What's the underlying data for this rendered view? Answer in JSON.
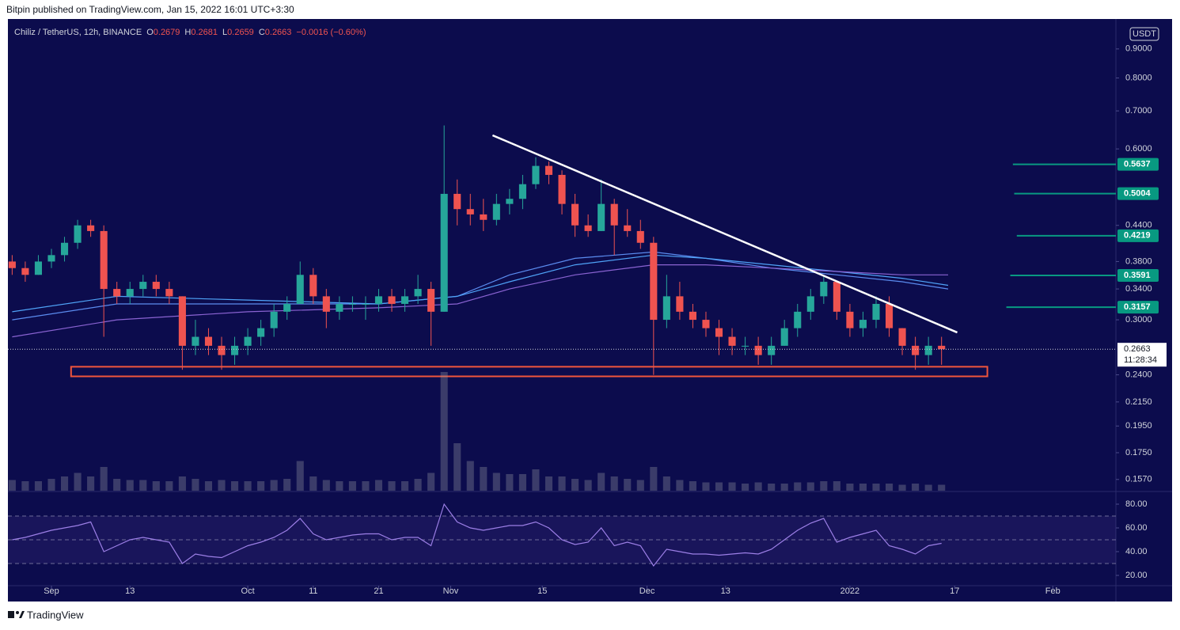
{
  "header": {
    "published": "Bitpin published on TradingView.com, Jan 15, 2022 16:01 UTC+3:30"
  },
  "footer": {
    "brand": "TradingView"
  },
  "chart_data": {
    "type": "candlestick",
    "symbol": "Chiliz / TetherUS, 12h, BINANCE",
    "ohlc": [
      {
        "label": "O",
        "value": 0.2679
      },
      {
        "label": "H",
        "value": 0.2681
      },
      {
        "label": "L",
        "value": 0.2659
      },
      {
        "label": "C",
        "value": 0.2663
      }
    ],
    "change": "−0.0016 (−0.60%)",
    "currency": "USDT",
    "log_scale": true,
    "up_color": "#26a69a",
    "down_color": "#ef5350",
    "x": [
      -6,
      -4,
      -2,
      0,
      2,
      4,
      6,
      8,
      10,
      12,
      14,
      16,
      18,
      20,
      22,
      24,
      26,
      28,
      30,
      32,
      34,
      36,
      38,
      40,
      42,
      44,
      46,
      48,
      50,
      52,
      54,
      56,
      58,
      60,
      62,
      64,
      66,
      68,
      70,
      72,
      74,
      76,
      78,
      80,
      82,
      84,
      86,
      88,
      90,
      92,
      94,
      96,
      98,
      100,
      102,
      104,
      106,
      108,
      110,
      112,
      114,
      116,
      118,
      120,
      122,
      124,
      126,
      128,
      130,
      132,
      134,
      136
    ],
    "open": [
      0.38,
      0.37,
      0.36,
      0.38,
      0.39,
      0.41,
      0.44,
      0.43,
      0.34,
      0.33,
      0.34,
      0.35,
      0.34,
      0.33,
      0.27,
      0.28,
      0.27,
      0.26,
      0.27,
      0.28,
      0.29,
      0.31,
      0.32,
      0.36,
      0.33,
      0.31,
      0.32,
      0.32,
      0.32,
      0.33,
      0.32,
      0.33,
      0.34,
      0.31,
      0.5,
      0.47,
      0.46,
      0.45,
      0.48,
      0.49,
      0.52,
      0.56,
      0.54,
      0.48,
      0.44,
      0.43,
      0.48,
      0.44,
      0.43,
      0.41,
      0.3,
      0.33,
      0.31,
      0.3,
      0.29,
      0.28,
      0.27,
      0.27,
      0.26,
      0.27,
      0.29,
      0.31,
      0.33,
      0.35,
      0.31,
      0.29,
      0.3,
      0.32,
      0.29,
      0.27,
      0.26,
      0.27
    ],
    "high": [
      0.39,
      0.38,
      0.39,
      0.4,
      0.42,
      0.45,
      0.45,
      0.44,
      0.35,
      0.35,
      0.36,
      0.36,
      0.35,
      0.33,
      0.3,
      0.29,
      0.28,
      0.28,
      0.29,
      0.3,
      0.32,
      0.33,
      0.38,
      0.37,
      0.34,
      0.33,
      0.33,
      0.33,
      0.34,
      0.34,
      0.34,
      0.36,
      0.35,
      0.66,
      0.53,
      0.5,
      0.49,
      0.5,
      0.51,
      0.54,
      0.58,
      0.57,
      0.55,
      0.5,
      0.46,
      0.53,
      0.49,
      0.47,
      0.45,
      0.42,
      0.36,
      0.35,
      0.32,
      0.31,
      0.3,
      0.29,
      0.28,
      0.28,
      0.28,
      0.3,
      0.32,
      0.34,
      0.36,
      0.35,
      0.32,
      0.31,
      0.33,
      0.33,
      0.29,
      0.28,
      0.28,
      0.28
    ],
    "low": [
      0.36,
      0.35,
      0.36,
      0.37,
      0.38,
      0.4,
      0.42,
      0.28,
      0.32,
      0.32,
      0.33,
      0.33,
      0.32,
      0.245,
      0.26,
      0.26,
      0.245,
      0.25,
      0.26,
      0.27,
      0.28,
      0.3,
      0.32,
      0.32,
      0.29,
      0.3,
      0.31,
      0.3,
      0.31,
      0.31,
      0.31,
      0.32,
      0.27,
      0.31,
      0.44,
      0.44,
      0.43,
      0.44,
      0.46,
      0.47,
      0.51,
      0.52,
      0.46,
      0.42,
      0.42,
      0.43,
      0.39,
      0.42,
      0.4,
      0.24,
      0.29,
      0.3,
      0.29,
      0.28,
      0.26,
      0.26,
      0.26,
      0.25,
      0.25,
      0.27,
      0.28,
      0.3,
      0.32,
      0.3,
      0.28,
      0.28,
      0.29,
      0.28,
      0.26,
      0.245,
      0.25,
      0.25
    ],
    "close": [
      0.37,
      0.36,
      0.38,
      0.39,
      0.41,
      0.44,
      0.43,
      0.34,
      0.33,
      0.34,
      0.35,
      0.34,
      0.33,
      0.27,
      0.28,
      0.27,
      0.26,
      0.27,
      0.28,
      0.29,
      0.31,
      0.32,
      0.36,
      0.33,
      0.31,
      0.32,
      0.32,
      0.32,
      0.33,
      0.32,
      0.33,
      0.34,
      0.31,
      0.5,
      0.47,
      0.46,
      0.45,
      0.48,
      0.49,
      0.52,
      0.56,
      0.54,
      0.48,
      0.44,
      0.43,
      0.48,
      0.44,
      0.43,
      0.41,
      0.3,
      0.33,
      0.31,
      0.3,
      0.29,
      0.28,
      0.27,
      0.27,
      0.26,
      0.27,
      0.29,
      0.31,
      0.33,
      0.35,
      0.31,
      0.29,
      0.3,
      0.32,
      0.29,
      0.27,
      0.26,
      0.27,
      0.2663
    ],
    "volume": [
      9,
      8,
      8,
      10,
      12,
      15,
      12,
      20,
      10,
      9,
      9,
      8,
      8,
      12,
      10,
      8,
      9,
      8,
      8,
      8,
      9,
      10,
      25,
      12,
      9,
      8,
      8,
      8,
      9,
      8,
      8,
      10,
      15,
      100,
      40,
      25,
      20,
      15,
      14,
      14,
      18,
      12,
      12,
      10,
      9,
      15,
      12,
      10,
      9,
      20,
      12,
      9,
      8,
      7,
      7,
      7,
      6,
      7,
      6,
      6,
      7,
      7,
      8,
      8,
      6,
      6,
      6,
      6,
      5,
      6,
      5,
      5
    ],
    "vlim": [
      0,
      100
    ],
    "xlim": [
      -6.65,
      162.64
    ],
    "xticks": [
      {
        "value": 0,
        "label": "Sep"
      },
      {
        "value": 12,
        "label": "13"
      },
      {
        "value": 30,
        "label": "Oct"
      },
      {
        "value": 40,
        "label": "11"
      },
      {
        "value": 50,
        "label": "21"
      },
      {
        "value": 61,
        "label": "Nov"
      },
      {
        "value": 75,
        "label": "15"
      },
      {
        "value": 91,
        "label": "Dec"
      },
      {
        "value": 103,
        "label": "13"
      },
      {
        "value": 122,
        "label": "2022"
      },
      {
        "value": 138,
        "label": "17"
      },
      {
        "value": 153,
        "label": "Feb"
      }
    ],
    "ylim": [
      0.15,
      1.0
    ],
    "yticks": [
      {
        "value": 0.9,
        "label": "0.9000"
      },
      {
        "value": 0.8,
        "label": "0.8000"
      },
      {
        "value": 0.7,
        "label": "0.7000"
      },
      {
        "value": 0.6,
        "label": "0.6000"
      },
      {
        "value": 0.44,
        "label": "0.4400"
      },
      {
        "value": 0.38,
        "label": "0.3800"
      },
      {
        "value": 0.34,
        "label": "0.3400"
      },
      {
        "value": 0.3,
        "label": "0.3000"
      },
      {
        "value": 0.24,
        "label": "0.2400"
      },
      {
        "value": 0.215,
        "label": "0.2150"
      },
      {
        "value": 0.195,
        "label": "0.1950"
      },
      {
        "value": 0.175,
        "label": "0.1750"
      },
      {
        "value": 0.157,
        "label": "0.1570"
      }
    ],
    "moving_averages": [
      {
        "color": "#5b8cf0",
        "x": [
          -6,
          10,
          30,
          50,
          62,
          70,
          80,
          92,
          100,
          110,
          120,
          130,
          137
        ],
        "values": [
          0.3,
          0.32,
          0.32,
          0.32,
          0.33,
          0.36,
          0.385,
          0.395,
          0.385,
          0.37,
          0.36,
          0.35,
          0.34
        ]
      },
      {
        "color": "#4fa3f7",
        "x": [
          -6,
          10,
          30,
          50,
          62,
          70,
          80,
          92,
          100,
          110,
          120,
          130,
          137
        ],
        "values": [
          0.31,
          0.33,
          0.325,
          0.32,
          0.33,
          0.35,
          0.375,
          0.39,
          0.385,
          0.375,
          0.365,
          0.355,
          0.345
        ]
      },
      {
        "color": "#8a63d2",
        "x": [
          -6,
          10,
          30,
          50,
          62,
          70,
          80,
          92,
          100,
          110,
          120,
          130,
          137
        ],
        "values": [
          0.28,
          0.3,
          0.31,
          0.315,
          0.32,
          0.34,
          0.36,
          0.375,
          0.375,
          0.37,
          0.365,
          0.36,
          0.36
        ]
      }
    ],
    "trendline": {
      "color": "#ffffff",
      "x": [
        67.4,
        138.4
      ],
      "y": [
        0.634,
        0.285
      ]
    },
    "support_zone": {
      "color": "#f0553c",
      "x": [
        3,
        143
      ],
      "y": [
        0.2385,
        0.248
      ]
    },
    "levels": [
      {
        "value": 0.5637,
        "x": 146.9
      },
      {
        "value": 0.5004,
        "x": 147.1
      },
      {
        "value": 0.4219,
        "x": 147.5
      },
      {
        "value": 0.3591,
        "x": 146.5
      },
      {
        "value": 0.3157,
        "x": 145.9
      }
    ],
    "level_color": "#089981",
    "last_price": 0.2663,
    "countdown": "11:28:34",
    "rsi": {
      "color": "#9c7fe6",
      "values": [
        50,
        52,
        55,
        58,
        60,
        62,
        65,
        40,
        45,
        50,
        52,
        50,
        48,
        30,
        38,
        36,
        35,
        40,
        45,
        48,
        52,
        58,
        68,
        55,
        50,
        52,
        54,
        55,
        55,
        50,
        52,
        52,
        45,
        80,
        65,
        60,
        58,
        60,
        62,
        62,
        65,
        60,
        50,
        46,
        48,
        60,
        45,
        48,
        45,
        28,
        42,
        40,
        38,
        38,
        37,
        38,
        39,
        38,
        42,
        50,
        58,
        64,
        68,
        48,
        52,
        55,
        58,
        45,
        42,
        38,
        45,
        47
      ],
      "ylim": [
        10,
        90
      ],
      "yticks": [
        {
          "value": 80,
          "label": "80.00"
        },
        {
          "value": 60,
          "label": "60.00"
        },
        {
          "value": 40,
          "label": "40.00"
        },
        {
          "value": 20,
          "label": "20.00"
        }
      ],
      "levels": [
        70,
        50,
        30
      ]
    }
  }
}
